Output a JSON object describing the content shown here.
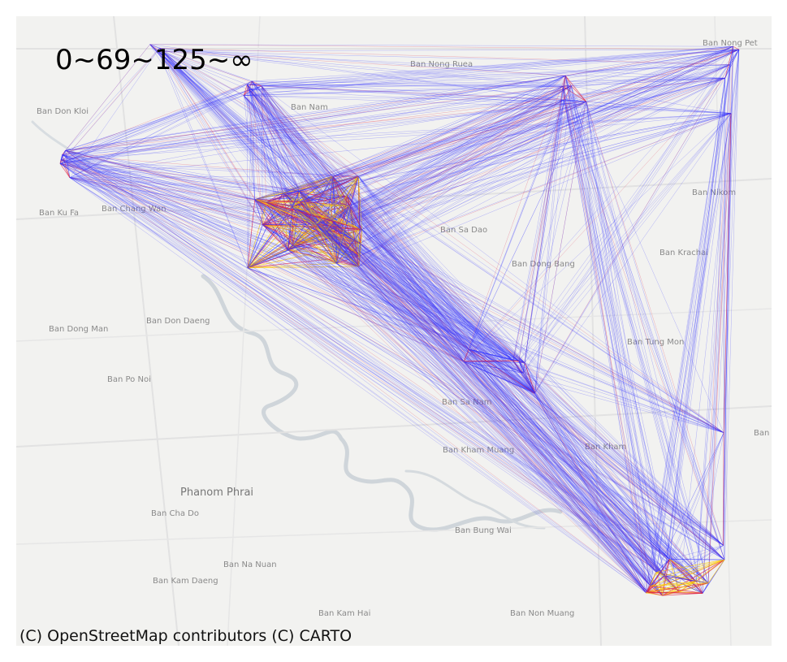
{
  "legend": {
    "text": "0~69~125~∞"
  },
  "attribution": "(C) OpenStreetMap contributors (C) CARTO",
  "colors": {
    "low": "#3333ff",
    "mid": "#dd2244",
    "high": "#ffcc00",
    "background": "#f2f2f0",
    "river": "#c9cfd4",
    "label": "#8a8a8a"
  },
  "places": [
    {
      "name": "Ban Nong Pet"
    },
    {
      "name": "Ban Nong Ruea"
    },
    {
      "name": "Ban Don Kloi"
    },
    {
      "name": "Ban Nam"
    },
    {
      "name": "Ban Ku Fa"
    },
    {
      "name": "Ban Chang Wan"
    },
    {
      "name": "Ban Sa Dao"
    },
    {
      "name": "Ban Nikom"
    },
    {
      "name": "Ban Krachai"
    },
    {
      "name": "Ban Dong Bang"
    },
    {
      "name": "Ban Dong Man"
    },
    {
      "name": "Ban Don Daeng"
    },
    {
      "name": "Ban Po Noi"
    },
    {
      "name": "Ban Tung Mon"
    },
    {
      "name": "Ban Sa Nam"
    },
    {
      "name": "Ban Kham Muang"
    },
    {
      "name": "Ban Kham"
    },
    {
      "name": "Phanom Phrai"
    },
    {
      "name": "Ban Cha Do"
    },
    {
      "name": "Ban Bung Wai"
    },
    {
      "name": "Ban Na Nuan"
    },
    {
      "name": "Ban Kam Daeng"
    },
    {
      "name": "Ban Kam Hai"
    },
    {
      "name": "Ban Non Muang"
    },
    {
      "name": "Ban"
    }
  ]
}
